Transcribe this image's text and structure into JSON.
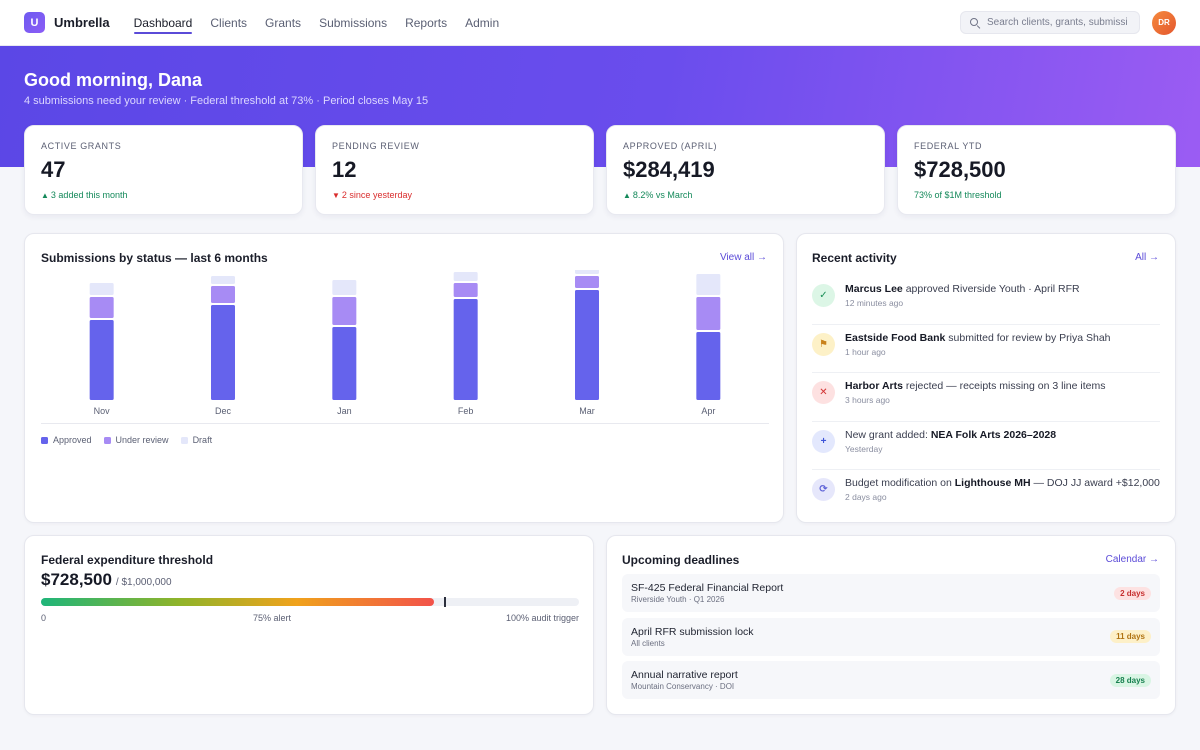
{
  "brand": {
    "logo_letter": "U",
    "name": "Umbrella"
  },
  "nav": {
    "items": [
      {
        "label": "Dashboard",
        "active": true
      },
      {
        "label": "Clients",
        "active": false
      },
      {
        "label": "Grants",
        "active": false
      },
      {
        "label": "Submissions",
        "active": false
      },
      {
        "label": "Reports",
        "active": false
      },
      {
        "label": "Admin",
        "active": false
      }
    ]
  },
  "search": {
    "placeholder": "Search clients, grants, submissions"
  },
  "user": {
    "initials": "DR"
  },
  "hero": {
    "greeting": "Good morning, Dana",
    "subtitle": "4 submissions need your review · Federal threshold at 73% · Period closes May 15"
  },
  "kpis": [
    {
      "label": "ACTIVE GRANTS",
      "value": "47",
      "delta": "3 added this month",
      "trend": "up",
      "arrow": "▲"
    },
    {
      "label": "PENDING REVIEW",
      "value": "12",
      "delta": "2 since yesterday",
      "trend": "down",
      "arrow": "▼"
    },
    {
      "label": "APPROVED (APRIL)",
      "value": "$284,419",
      "delta": "8.2% vs March",
      "trend": "up",
      "arrow": "▲"
    },
    {
      "label": "FEDERAL YTD",
      "value": "$728,500",
      "delta": "73% of $1M threshold",
      "trend": "up",
      "arrow": ""
    }
  ],
  "submissions_card": {
    "title": "Submissions by status — last 6 months",
    "link": "View all →"
  },
  "chart_data": {
    "type": "bar",
    "stacked": true,
    "categories": [
      "Nov",
      "Dec",
      "Jan",
      "Feb",
      "Mar",
      "Apr"
    ],
    "series": [
      {
        "name": "Approved",
        "color": "#6563ec",
        "values": [
          80,
          95,
          73,
          101,
          110,
          68
        ]
      },
      {
        "name": "Under review",
        "color": "#a78bf4",
        "values": [
          21,
          17,
          28,
          14,
          12,
          33
        ]
      },
      {
        "name": "Draft",
        "color": "#e4e7fa",
        "values": [
          12,
          8,
          15,
          9,
          6,
          21
        ]
      }
    ],
    "legend_position": "bottom-left",
    "grid": false
  },
  "activity": {
    "title": "Recent activity",
    "link": "All →",
    "items": [
      {
        "icon": "check-icon",
        "glyph": "✓",
        "bg": "#dcf6e6",
        "fg": "#1a8f57",
        "bold": "Marcus Lee",
        "text": " approved Riverside Youth · April RFR",
        "time": "12 minutes ago"
      },
      {
        "icon": "flag-icon",
        "glyph": "⚑",
        "bg": "#fdf1c7",
        "fg": "#c9821a",
        "bold": "Eastside Food Bank",
        "text": " submitted for review by Priya Shah",
        "time": "1 hour ago"
      },
      {
        "icon": "x-icon",
        "glyph": "✕",
        "bg": "#fde1e1",
        "fg": "#d23434",
        "bold": "Harbor Arts",
        "text": " rejected — receipts missing on 3 line items",
        "time": "3 hours ago"
      },
      {
        "icon": "plus-icon",
        "glyph": "+",
        "bg": "#e3e8fd",
        "fg": "#3d54d8",
        "pre": "New grant added: ",
        "bold": "NEA Folk Arts 2026–2028",
        "text": "",
        "time": "Yesterday"
      },
      {
        "icon": "refresh-icon",
        "glyph": "⟳",
        "bg": "#e6e7fb",
        "fg": "#5b5fd6",
        "pre": "Budget modification on ",
        "bold": "Lighthouse MH",
        "text": " — DOJ JJ award +$12,000",
        "time": "2 days ago"
      }
    ]
  },
  "threshold": {
    "title": "Federal expenditure threshold",
    "amount": "$728,500",
    "total": "/ $1,000,000",
    "fill_fraction": 0.73,
    "marker_fraction": 0.75,
    "labels": {
      "start": "0",
      "alert": "75% alert",
      "end": "100% audit trigger"
    }
  },
  "deadlines": {
    "title": "Upcoming deadlines",
    "link": "Calendar →",
    "items": [
      {
        "title": "SF-425 Federal Financial Report",
        "sub": "Riverside Youth · Q1 2026",
        "badge": "2 days",
        "bg": "#fde2e2",
        "fg": "#c62f2f"
      },
      {
        "title": "April RFR submission lock",
        "sub": "All clients",
        "badge": "11 days",
        "bg": "#fdf0c8",
        "fg": "#b07312"
      },
      {
        "title": "Annual narrative report",
        "sub": "Mountain Conservancy · DOI",
        "badge": "28 days",
        "bg": "#d9f5e4",
        "fg": "#17804f"
      }
    ]
  }
}
